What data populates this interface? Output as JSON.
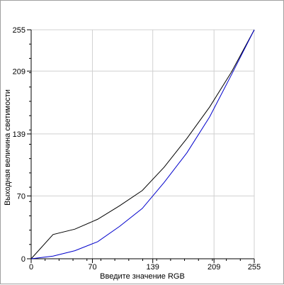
{
  "chart_data": {
    "type": "line",
    "title": "",
    "xlabel": "Введите значение RGB",
    "ylabel": "Выходная величина светимости",
    "xlim": [
      0,
      255
    ],
    "ylim": [
      0,
      255
    ],
    "xticks": [
      "0",
      "70",
      "139",
      "209",
      "255"
    ],
    "yticks": [
      "0",
      "70",
      "139",
      "209",
      "255"
    ],
    "grid": true,
    "colors": {
      "black_curve": "#000000",
      "blue_curve": "#0000cc",
      "grid": "#d0d0d0"
    },
    "series": [
      {
        "x": [
          0,
          25,
          50,
          76,
          101,
          127,
          152,
          178,
          204,
          229,
          255
        ],
        "y": [
          0,
          27,
          33,
          44,
          59,
          76,
          102,
          134,
          169,
          208,
          255
        ]
      },
      {
        "x": [
          0,
          25,
          50,
          76,
          101,
          127,
          152,
          178,
          204,
          229,
          255
        ],
        "y": [
          0,
          3,
          9,
          19,
          36,
          56,
          85,
          118,
          158,
          205,
          255
        ]
      }
    ]
  }
}
